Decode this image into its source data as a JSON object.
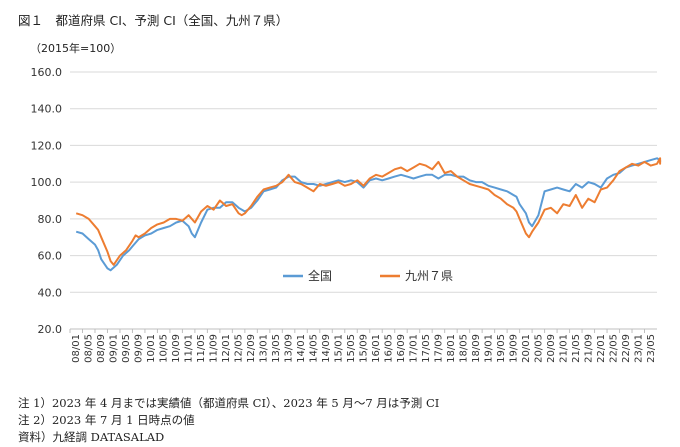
{
  "title": "図１　都道府県 CI、予測 CI（全国、九州７県）",
  "notes": [
    "注 1）2023 年 4 月までは実績値（都道府県 CI）、2023 年 5 月～7 月は予測 CI",
    "注 2）2023 年 7 月 1 日時点の値",
    "資料）九経調 DATASALAD"
  ],
  "colors": {
    "national": "#5b9bd5",
    "kyushu": "#ed7d31",
    "grid": "#d9d9d9",
    "axis": "#bfbfbf"
  },
  "chart_data": {
    "type": "line",
    "unit_label": "（2015年=100）",
    "ylim": [
      20,
      160
    ],
    "yticks": [
      "20.0",
      "40.0",
      "60.0",
      "80.0",
      "100.0",
      "120.0",
      "140.0",
      "160.0"
    ],
    "grid": true,
    "legend_position": "center",
    "xticks": [
      "08/01",
      "08/05",
      "08/09",
      "09/01",
      "09/05",
      "09/09",
      "10/01",
      "10/05",
      "10/09",
      "11/01",
      "11/05",
      "11/09",
      "12/01",
      "12/05",
      "12/09",
      "13/01",
      "13/05",
      "13/09",
      "14/01",
      "14/05",
      "14/09",
      "15/01",
      "15/05",
      "15/09",
      "16/01",
      "16/05",
      "16/09",
      "17/01",
      "17/05",
      "17/09",
      "18/01",
      "18/05",
      "18/09",
      "19/01",
      "19/05",
      "19/09",
      "20/01",
      "20/05",
      "20/09",
      "21/01",
      "21/05",
      "21/09",
      "22/01",
      "22/05",
      "22/09",
      "23/01",
      "23/05"
    ],
    "series": [
      {
        "name": "全国",
        "points": [
          [
            0,
            73
          ],
          [
            2,
            72
          ],
          [
            4,
            69
          ],
          [
            6,
            66
          ],
          [
            7,
            63
          ],
          [
            8,
            58
          ],
          [
            10,
            53
          ],
          [
            11,
            52
          ],
          [
            13,
            55
          ],
          [
            15,
            60
          ],
          [
            17,
            63
          ],
          [
            18,
            65
          ],
          [
            20,
            69
          ],
          [
            22,
            71
          ],
          [
            24,
            72
          ],
          [
            26,
            74
          ],
          [
            28,
            75
          ],
          [
            30,
            76
          ],
          [
            32,
            78
          ],
          [
            34,
            79
          ],
          [
            36,
            76
          ],
          [
            37,
            72
          ],
          [
            38,
            70
          ],
          [
            40,
            78
          ],
          [
            42,
            85
          ],
          [
            44,
            86
          ],
          [
            46,
            86
          ],
          [
            48,
            89
          ],
          [
            50,
            89
          ],
          [
            52,
            86
          ],
          [
            54,
            84
          ],
          [
            56,
            86
          ],
          [
            58,
            90
          ],
          [
            60,
            95
          ],
          [
            62,
            96
          ],
          [
            64,
            97
          ],
          [
            66,
            101
          ],
          [
            68,
            103
          ],
          [
            70,
            103
          ],
          [
            72,
            100
          ],
          [
            74,
            99
          ],
          [
            76,
            99
          ],
          [
            78,
            98
          ],
          [
            80,
            99
          ],
          [
            82,
            100
          ],
          [
            84,
            101
          ],
          [
            86,
            100
          ],
          [
            88,
            101
          ],
          [
            90,
            100
          ],
          [
            92,
            97
          ],
          [
            94,
            101
          ],
          [
            96,
            102
          ],
          [
            98,
            101
          ],
          [
            100,
            102
          ],
          [
            102,
            103
          ],
          [
            104,
            104
          ],
          [
            106,
            103
          ],
          [
            108,
            102
          ],
          [
            110,
            103
          ],
          [
            112,
            104
          ],
          [
            114,
            104
          ],
          [
            116,
            102
          ],
          [
            118,
            104
          ],
          [
            120,
            104
          ],
          [
            122,
            103
          ],
          [
            124,
            103
          ],
          [
            126,
            101
          ],
          [
            128,
            100
          ],
          [
            130,
            100
          ],
          [
            132,
            98
          ],
          [
            134,
            97
          ],
          [
            136,
            96
          ],
          [
            138,
            95
          ],
          [
            140,
            93
          ],
          [
            141,
            92
          ],
          [
            142,
            88
          ],
          [
            144,
            83
          ],
          [
            145,
            78
          ],
          [
            146,
            76
          ],
          [
            148,
            82
          ],
          [
            150,
            95
          ],
          [
            152,
            96
          ],
          [
            154,
            97
          ],
          [
            156,
            96
          ],
          [
            158,
            95
          ],
          [
            160,
            99
          ],
          [
            162,
            97
          ],
          [
            164,
            100
          ],
          [
            166,
            99
          ],
          [
            168,
            97
          ],
          [
            170,
            102
          ],
          [
            172,
            104
          ],
          [
            174,
            105
          ],
          [
            176,
            108
          ],
          [
            178,
            109
          ],
          [
            180,
            110
          ],
          [
            182,
            111
          ],
          [
            184,
            112
          ],
          [
            186,
            113
          ],
          [
            188,
            112
          ],
          [
            190,
            112
          ],
          [
            192,
            111
          ],
          [
            194,
            112
          ],
          [
            198,
            112
          ]
        ]
      },
      {
        "name": "九州７県",
        "points": [
          [
            0,
            83
          ],
          [
            2,
            82
          ],
          [
            4,
            80
          ],
          [
            6,
            76
          ],
          [
            7,
            74
          ],
          [
            8,
            70
          ],
          [
            10,
            62
          ],
          [
            11,
            57
          ],
          [
            12,
            55
          ],
          [
            14,
            60
          ],
          [
            16,
            63
          ],
          [
            18,
            68
          ],
          [
            19,
            71
          ],
          [
            20,
            70
          ],
          [
            22,
            72
          ],
          [
            24,
            75
          ],
          [
            26,
            77
          ],
          [
            28,
            78
          ],
          [
            30,
            80
          ],
          [
            32,
            80
          ],
          [
            34,
            79
          ],
          [
            36,
            82
          ],
          [
            38,
            78
          ],
          [
            40,
            84
          ],
          [
            42,
            87
          ],
          [
            44,
            85
          ],
          [
            46,
            90
          ],
          [
            48,
            87
          ],
          [
            50,
            88
          ],
          [
            52,
            83
          ],
          [
            53,
            82
          ],
          [
            54,
            83
          ],
          [
            56,
            87
          ],
          [
            58,
            92
          ],
          [
            60,
            96
          ],
          [
            62,
            97
          ],
          [
            64,
            98
          ],
          [
            66,
            100
          ],
          [
            68,
            104
          ],
          [
            70,
            100
          ],
          [
            72,
            99
          ],
          [
            74,
            97
          ],
          [
            76,
            95
          ],
          [
            78,
            99
          ],
          [
            80,
            98
          ],
          [
            82,
            99
          ],
          [
            84,
            100
          ],
          [
            86,
            98
          ],
          [
            88,
            99
          ],
          [
            90,
            101
          ],
          [
            92,
            98
          ],
          [
            94,
            102
          ],
          [
            96,
            104
          ],
          [
            98,
            103
          ],
          [
            100,
            105
          ],
          [
            102,
            107
          ],
          [
            104,
            108
          ],
          [
            106,
            106
          ],
          [
            108,
            108
          ],
          [
            110,
            110
          ],
          [
            112,
            109
          ],
          [
            114,
            107
          ],
          [
            116,
            111
          ],
          [
            118,
            105
          ],
          [
            120,
            106
          ],
          [
            122,
            103
          ],
          [
            124,
            101
          ],
          [
            126,
            99
          ],
          [
            128,
            98
          ],
          [
            130,
            97
          ],
          [
            132,
            96
          ],
          [
            134,
            93
          ],
          [
            136,
            91
          ],
          [
            138,
            88
          ],
          [
            140,
            86
          ],
          [
            141,
            84
          ],
          [
            142,
            80
          ],
          [
            144,
            72
          ],
          [
            145,
            70
          ],
          [
            146,
            73
          ],
          [
            148,
            78
          ],
          [
            150,
            85
          ],
          [
            152,
            86
          ],
          [
            154,
            83
          ],
          [
            156,
            88
          ],
          [
            158,
            87
          ],
          [
            160,
            93
          ],
          [
            162,
            86
          ],
          [
            164,
            91
          ],
          [
            166,
            89
          ],
          [
            168,
            96
          ],
          [
            170,
            97
          ],
          [
            172,
            101
          ],
          [
            174,
            106
          ],
          [
            176,
            108
          ],
          [
            178,
            110
          ],
          [
            180,
            109
          ],
          [
            182,
            111
          ],
          [
            184,
            109
          ],
          [
            186,
            110
          ],
          [
            188,
            113
          ],
          [
            190,
            112
          ],
          [
            192,
            110
          ],
          [
            194,
            111
          ],
          [
            198,
            112
          ]
        ]
      }
    ]
  }
}
